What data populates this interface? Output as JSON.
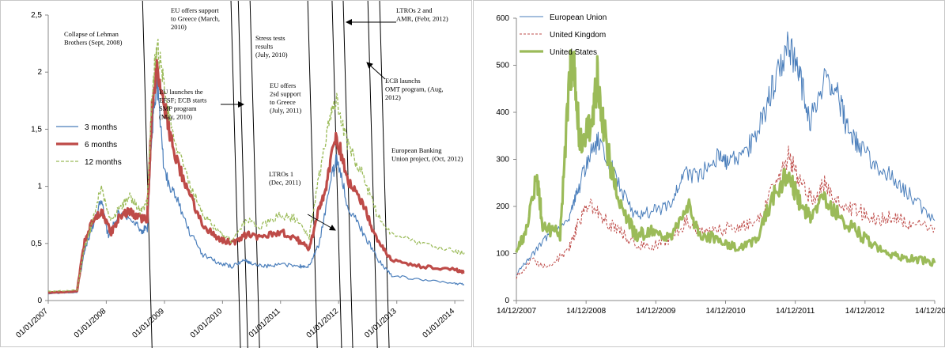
{
  "chart_data": [
    {
      "type": "line",
      "ylim": [
        0,
        2.5
      ],
      "y_ticks": [
        "0",
        "0,5",
        "1",
        "1,5",
        "2",
        "2,5"
      ],
      "x_range": [
        "2007-01-01",
        "2014-03-01"
      ],
      "x_ticks": [
        "01/01/2007",
        "01/01/2008",
        "01/01/2009",
        "01/01/2010",
        "01/01/2011",
        "01/01/2012",
        "01/01/2013",
        "01/01/2014"
      ],
      "grid": false,
      "legend_position": "middle-left",
      "series": [
        {
          "name": "3 months",
          "color": "#4a7ebb",
          "points": [
            [
              "2007-01-01",
              0.06
            ],
            [
              "2007-07-01",
              0.07
            ],
            [
              "2007-08-15",
              0.42
            ],
            [
              "2007-10-01",
              0.62
            ],
            [
              "2007-12-01",
              0.88
            ],
            [
              "2008-01-15",
              0.55
            ],
            [
              "2008-03-15",
              0.75
            ],
            [
              "2008-06-01",
              0.72
            ],
            [
              "2008-08-01",
              0.62
            ],
            [
              "2008-09-15",
              0.62
            ],
            [
              "2008-10-15",
              1.5
            ],
            [
              "2008-11-15",
              1.92
            ],
            [
              "2009-01-01",
              1.1
            ],
            [
              "2009-03-01",
              0.95
            ],
            [
              "2009-06-01",
              0.62
            ],
            [
              "2009-09-01",
              0.4
            ],
            [
              "2009-12-01",
              0.33
            ],
            [
              "2010-03-01",
              0.3
            ],
            [
              "2010-05-15",
              0.36
            ],
            [
              "2010-07-01",
              0.33
            ],
            [
              "2010-10-01",
              0.3
            ],
            [
              "2011-01-01",
              0.32
            ],
            [
              "2011-05-01",
              0.3
            ],
            [
              "2011-07-01",
              0.3
            ],
            [
              "2011-09-01",
              0.5
            ],
            [
              "2011-11-15",
              1.05
            ],
            [
              "2011-12-20",
              1.24
            ],
            [
              "2012-03-01",
              0.82
            ],
            [
              "2012-06-01",
              0.6
            ],
            [
              "2012-09-01",
              0.36
            ],
            [
              "2012-12-01",
              0.22
            ],
            [
              "2013-06-01",
              0.18
            ],
            [
              "2014-01-01",
              0.15
            ],
            [
              "2014-03-01",
              0.14
            ]
          ]
        },
        {
          "name": "6 months",
          "color": "#be4b48",
          "points": [
            [
              "2007-01-01",
              0.07
            ],
            [
              "2007-07-01",
              0.08
            ],
            [
              "2007-08-15",
              0.5
            ],
            [
              "2007-10-01",
              0.68
            ],
            [
              "2007-12-01",
              0.78
            ],
            [
              "2008-02-01",
              0.6
            ],
            [
              "2008-04-01",
              0.75
            ],
            [
              "2008-06-01",
              0.78
            ],
            [
              "2008-08-01",
              0.72
            ],
            [
              "2008-09-15",
              0.72
            ],
            [
              "2008-10-15",
              1.7
            ],
            [
              "2008-11-15",
              2.05
            ],
            [
              "2009-01-01",
              1.7
            ],
            [
              "2009-03-01",
              1.3
            ],
            [
              "2009-06-01",
              0.95
            ],
            [
              "2009-09-01",
              0.65
            ],
            [
              "2009-12-01",
              0.55
            ],
            [
              "2010-03-01",
              0.5
            ],
            [
              "2010-06-01",
              0.58
            ],
            [
              "2010-09-01",
              0.55
            ],
            [
              "2011-01-01",
              0.6
            ],
            [
              "2011-04-01",
              0.55
            ],
            [
              "2011-07-01",
              0.45
            ],
            [
              "2011-09-01",
              0.82
            ],
            [
              "2011-10-15",
              1.0
            ],
            [
              "2011-12-15",
              1.46
            ],
            [
              "2012-03-01",
              1.05
            ],
            [
              "2012-06-01",
              0.85
            ],
            [
              "2012-09-01",
              0.52
            ],
            [
              "2012-12-01",
              0.35
            ],
            [
              "2013-06-01",
              0.3
            ],
            [
              "2014-01-01",
              0.27
            ],
            [
              "2014-03-01",
              0.25
            ]
          ]
        },
        {
          "name": "12 months",
          "color": "#9bbb59",
          "points": [
            [
              "2007-01-01",
              0.08
            ],
            [
              "2007-07-01",
              0.09
            ],
            [
              "2007-08-15",
              0.45
            ],
            [
              "2007-10-01",
              0.66
            ],
            [
              "2007-12-01",
              1.0
            ],
            [
              "2008-02-01",
              0.7
            ],
            [
              "2008-04-01",
              0.82
            ],
            [
              "2008-06-01",
              0.92
            ],
            [
              "2008-08-01",
              0.78
            ],
            [
              "2008-09-15",
              0.85
            ],
            [
              "2008-10-15",
              1.8
            ],
            [
              "2008-11-15",
              2.27
            ],
            [
              "2009-01-01",
              1.85
            ],
            [
              "2009-03-01",
              1.4
            ],
            [
              "2009-06-01",
              1.05
            ],
            [
              "2009-09-01",
              0.75
            ],
            [
              "2009-12-01",
              0.6
            ],
            [
              "2010-03-01",
              0.52
            ],
            [
              "2010-06-01",
              0.72
            ],
            [
              "2010-09-01",
              0.65
            ],
            [
              "2011-01-01",
              0.75
            ],
            [
              "2011-04-01",
              0.72
            ],
            [
              "2011-07-01",
              0.55
            ],
            [
              "2011-09-01",
              1.1
            ],
            [
              "2011-11-01",
              1.55
            ],
            [
              "2011-12-15",
              1.76
            ],
            [
              "2012-03-01",
              1.35
            ],
            [
              "2012-06-01",
              1.1
            ],
            [
              "2012-09-01",
              0.75
            ],
            [
              "2012-12-01",
              0.58
            ],
            [
              "2013-06-01",
              0.5
            ],
            [
              "2014-01-01",
              0.43
            ],
            [
              "2014-03-01",
              0.42
            ]
          ]
        }
      ],
      "annotations": [
        {
          "text": [
            "Collapse of Lehman",
            "Brothers (Sept, 2008)"
          ],
          "date": "2008-09-15"
        },
        {
          "text": [
            "EU offers support",
            "to Greece (March,",
            "2010)"
          ],
          "date": "2010-03-25"
        },
        {
          "text": [
            "EU launches the",
            "EFSF; ECB starts",
            "SMP program",
            "(May, 2010)"
          ],
          "date": "2010-05-10"
        },
        {
          "text": [
            "Stress tests",
            "results",
            "(July, 2010)"
          ],
          "date": "2010-07-23"
        },
        {
          "text": [
            "EU offers",
            "2sd support",
            "to Greece",
            "(July, 2011)"
          ],
          "date": "2011-07-21"
        },
        {
          "text": [
            "LTROs 1",
            "(Dec, 2011)"
          ],
          "date": "2011-12-21"
        },
        {
          "text": [
            "LTROs 2 and",
            "AMR, (Febr, 2012)"
          ],
          "date": "2012-02-29"
        },
        {
          "text": [
            "ECB launchs",
            "OMT program, (Aug,",
            "2012)"
          ],
          "date": "2012-08-02"
        },
        {
          "text": [
            "European Banking",
            "Union project, (Oct, 2012)"
          ],
          "date": "2012-10-15"
        }
      ]
    },
    {
      "type": "line",
      "ylim": [
        0,
        600
      ],
      "y_ticks": [
        "0",
        "100",
        "200",
        "300",
        "400",
        "500",
        "600"
      ],
      "x_range": [
        "2007-12-14",
        "2013-12-31"
      ],
      "x_ticks": [
        "14/12/2007",
        "14/12/2008",
        "14/12/2009",
        "14/12/2010",
        "14/12/2011",
        "14/12/2012",
        "14/12/2013"
      ],
      "grid": false,
      "legend_position": "top-left",
      "series": [
        {
          "name": "European Union",
          "color": "#4a7ebb",
          "points": [
            [
              "2007-12-14",
              55
            ],
            [
              "2008-03-01",
              95
            ],
            [
              "2008-06-01",
              140
            ],
            [
              "2008-09-15",
              170
            ],
            [
              "2008-11-01",
              230
            ],
            [
              "2009-01-01",
              310
            ],
            [
              "2009-03-01",
              345
            ],
            [
              "2009-06-01",
              250
            ],
            [
              "2009-09-01",
              180
            ],
            [
              "2009-12-01",
              190
            ],
            [
              "2010-03-01",
              200
            ],
            [
              "2010-05-15",
              270
            ],
            [
              "2010-08-01",
              260
            ],
            [
              "2010-11-15",
              310
            ],
            [
              "2011-01-01",
              290
            ],
            [
              "2011-04-01",
              310
            ],
            [
              "2011-07-01",
              380
            ],
            [
              "2011-09-01",
              460
            ],
            [
              "2011-11-20",
              550
            ],
            [
              "2012-01-15",
              480
            ],
            [
              "2012-03-15",
              380
            ],
            [
              "2012-06-01",
              480
            ],
            [
              "2012-08-01",
              440
            ],
            [
              "2012-10-01",
              360
            ],
            [
              "2012-12-01",
              330
            ],
            [
              "2013-03-01",
              280
            ],
            [
              "2013-06-01",
              260
            ],
            [
              "2013-09-01",
              220
            ],
            [
              "2013-12-31",
              170
            ]
          ]
        },
        {
          "name": "United Kingdom",
          "color": "#be4b48",
          "points": [
            [
              "2007-12-14",
              50
            ],
            [
              "2008-03-01",
              85
            ],
            [
              "2008-06-01",
              70
            ],
            [
              "2008-09-15",
              110
            ],
            [
              "2008-11-01",
              160
            ],
            [
              "2009-01-01",
              210
            ],
            [
              "2009-03-01",
              180
            ],
            [
              "2009-06-01",
              150
            ],
            [
              "2009-09-01",
              120
            ],
            [
              "2009-12-01",
              115
            ],
            [
              "2010-03-01",
              130
            ],
            [
              "2010-06-01",
              170
            ],
            [
              "2010-09-01",
              140
            ],
            [
              "2010-12-01",
              150
            ],
            [
              "2011-03-01",
              160
            ],
            [
              "2011-06-01",
              160
            ],
            [
              "2011-09-01",
              240
            ],
            [
              "2011-11-20",
              305
            ],
            [
              "2012-01-15",
              260
            ],
            [
              "2012-04-01",
              210
            ],
            [
              "2012-06-01",
              250
            ],
            [
              "2012-09-01",
              200
            ],
            [
              "2012-12-01",
              190
            ],
            [
              "2013-03-01",
              170
            ],
            [
              "2013-06-01",
              180
            ],
            [
              "2013-09-01",
              160
            ],
            [
              "2013-12-31",
              155
            ]
          ]
        },
        {
          "name": "United States",
          "color": "#9bbb59",
          "points": [
            [
              "2007-12-14",
              100
            ],
            [
              "2008-02-01",
              150
            ],
            [
              "2008-04-01",
              260
            ],
            [
              "2008-05-01",
              160
            ],
            [
              "2008-08-01",
              140
            ],
            [
              "2008-09-20",
              490
            ],
            [
              "2008-10-10",
              510
            ],
            [
              "2008-11-15",
              330
            ],
            [
              "2009-01-15",
              380
            ],
            [
              "2009-02-15",
              480
            ],
            [
              "2009-04-01",
              330
            ],
            [
              "2009-06-01",
              220
            ],
            [
              "2009-09-01",
              140
            ],
            [
              "2009-12-01",
              145
            ],
            [
              "2010-03-01",
              130
            ],
            [
              "2010-06-01",
              210
            ],
            [
              "2010-08-01",
              140
            ],
            [
              "2010-12-01",
              130
            ],
            [
              "2011-03-01",
              110
            ],
            [
              "2011-06-01",
              130
            ],
            [
              "2011-09-01",
              220
            ],
            [
              "2011-11-20",
              270
            ],
            [
              "2012-01-15",
              210
            ],
            [
              "2012-03-15",
              180
            ],
            [
              "2012-06-01",
              220
            ],
            [
              "2012-09-01",
              170
            ],
            [
              "2012-12-01",
              140
            ],
            [
              "2013-03-01",
              110
            ],
            [
              "2013-06-01",
              95
            ],
            [
              "2013-09-01",
              90
            ],
            [
              "2013-12-31",
              80
            ]
          ]
        }
      ]
    }
  ]
}
